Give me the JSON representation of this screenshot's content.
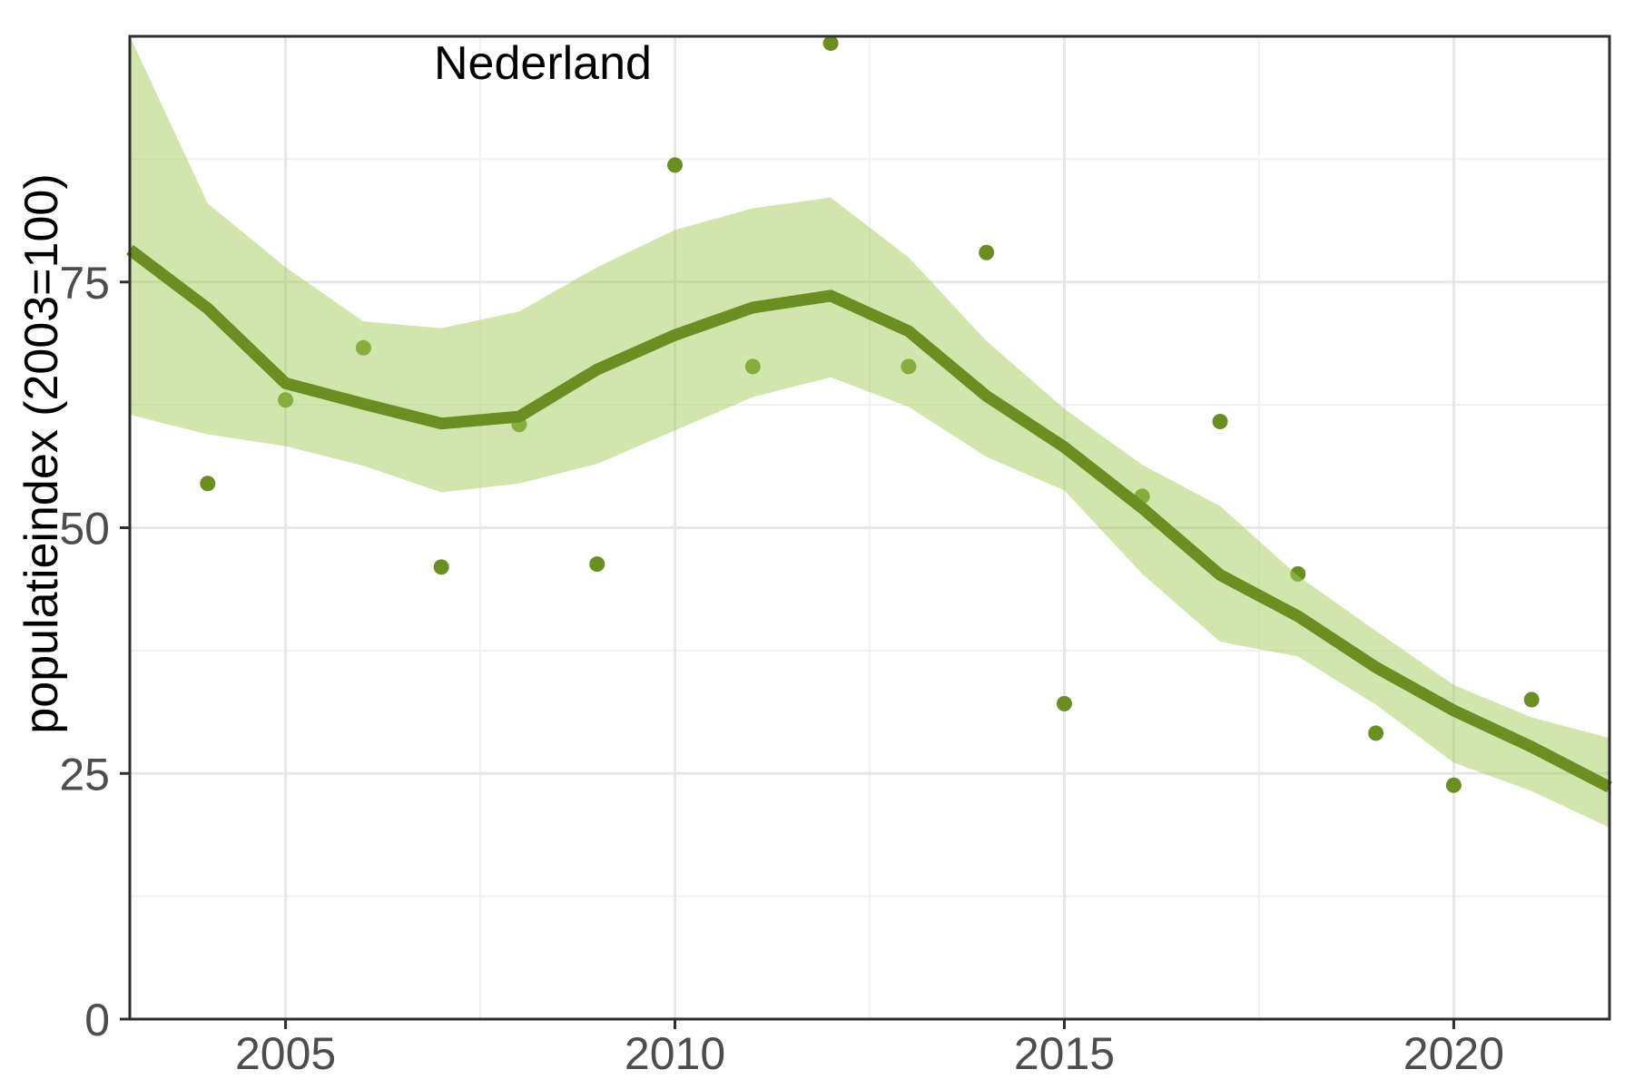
{
  "figure": {
    "background": "#ffffff"
  },
  "chart_data": {
    "type": "line",
    "title": "Nederland",
    "xlabel": "",
    "ylabel": "populatieindex (2003=100)",
    "x_range": [
      2003,
      2022
    ],
    "y_range": [
      0,
      100
    ],
    "x_major_ticks": [
      2005,
      2010,
      2015,
      2020
    ],
    "x_tick_labels": [
      "2005",
      "2010",
      "2015",
      "2020"
    ],
    "x_minor_ticks": [
      2007.5,
      2012.5,
      2017.5
    ],
    "y_major_ticks": [
      0,
      25,
      50,
      75
    ],
    "y_tick_labels": [
      "0",
      "25",
      "50",
      "75"
    ],
    "y_minor_ticks": [
      12.5,
      37.5,
      62.5,
      87.5
    ],
    "grid": true,
    "legend_position": "none",
    "colors": {
      "point": "#6B8E23",
      "trend_line": "#6B8E23",
      "ribbon_fill": "#A2CD5A",
      "ribbon_opacity": 0.5,
      "grid_major": "#e7e7e7",
      "grid_minor": "#f1f1f1",
      "panel_border": "#2e2e2e",
      "tick_label": "#4d4d4d"
    },
    "series": [
      {
        "name": "observed-points",
        "type": "scatter",
        "x": [
          2004,
          2005,
          2006,
          2007,
          2008,
          2009,
          2010,
          2011,
          2012,
          2013,
          2014,
          2015,
          2016,
          2017,
          2018,
          2019,
          2020,
          2021
        ],
        "y": [
          54.5,
          63.0,
          68.3,
          46.0,
          60.5,
          46.3,
          86.9,
          66.4,
          99.3,
          66.4,
          78.0,
          32.1,
          53.2,
          60.8,
          45.3,
          29.1,
          23.8,
          32.5
        ]
      },
      {
        "name": "trend-line",
        "type": "line",
        "x": [
          2003,
          2004,
          2005,
          2006,
          2007,
          2008,
          2009,
          2010,
          2011,
          2012,
          2013,
          2014,
          2015,
          2016,
          2017,
          2018,
          2019,
          2020,
          2021,
          2022
        ],
        "y": [
          78.3,
          72.3,
          64.7,
          62.6,
          60.6,
          61.3,
          66.1,
          69.6,
          72.4,
          73.6,
          70.0,
          63.4,
          58.2,
          52.0,
          45.2,
          41.0,
          35.8,
          31.4,
          27.7,
          23.6
        ]
      },
      {
        "name": "confidence-ribbon",
        "type": "area",
        "x": [
          2003,
          2004,
          2005,
          2006,
          2007,
          2008,
          2009,
          2010,
          2011,
          2012,
          2013,
          2014,
          2015,
          2016,
          2017,
          2018,
          2019,
          2020,
          2021,
          2022
        ],
        "upper": [
          100,
          83.0,
          76.5,
          71.0,
          70.3,
          72.0,
          76.5,
          80.3,
          82.5,
          83.6,
          77.5,
          69.0,
          62.1,
          56.4,
          52.2,
          45.1,
          39.5,
          34.0,
          30.7,
          28.6
        ],
        "lower": [
          61.5,
          59.5,
          58.3,
          56.3,
          53.6,
          54.5,
          56.5,
          59.9,
          63.3,
          65.3,
          62.3,
          57.2,
          53.8,
          45.3,
          38.4,
          36.9,
          32.0,
          26.1,
          23.2,
          19.5
        ]
      }
    ]
  }
}
